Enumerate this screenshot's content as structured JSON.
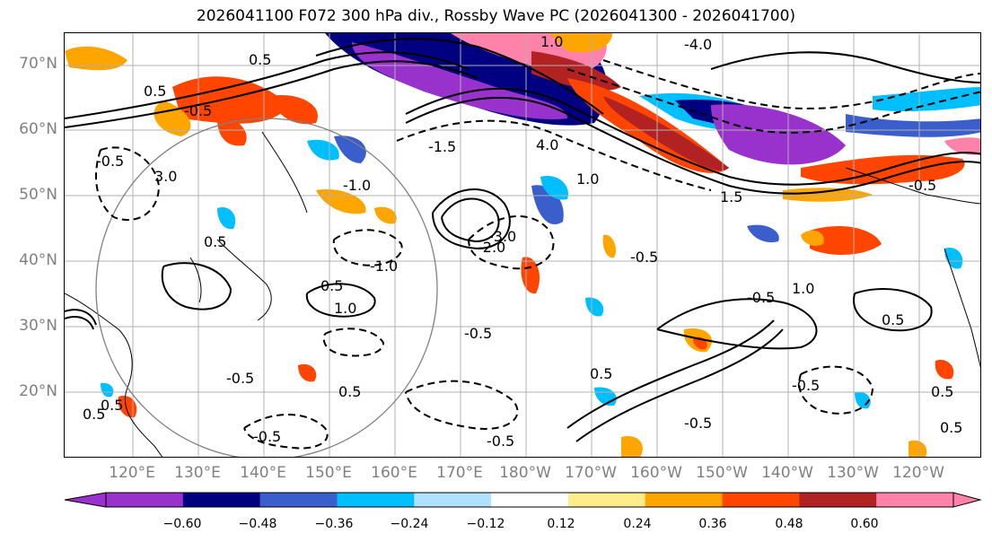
{
  "title": "2026041100 F072 300 hPa div., Rossby Wave PC (2026041300 - 2026041700)",
  "lat_labels": [
    "70°N",
    "60°N",
    "50°N",
    "40°N",
    "30°N",
    "20°N"
  ],
  "lon_labels": [
    "120°E",
    "130°E",
    "140°E",
    "150°E",
    "160°E",
    "170°E",
    "180°W",
    "170°W",
    "160°W",
    "150°W",
    "140°W",
    "130°W",
    "120°W"
  ],
  "colorbar": {
    "colors": [
      "#9932cc",
      "#000080",
      "#3a5fcd",
      "#00bfff",
      "#b0e2ff",
      "#ffffff",
      "#ffec8b",
      "#ffa500",
      "#ff4500",
      "#b22222",
      "#ff82ab"
    ],
    "tick_labels": [
      "−0.60",
      "−0.48",
      "−0.36",
      "−0.24",
      "−0.12",
      "0.12",
      "0.24",
      "0.36",
      "0.48",
      "0.60"
    ]
  },
  "contour_labels": [
    "0.5",
    "-0.5",
    "0.5",
    "-0.5",
    "1.0",
    "-1.0",
    "-1.5",
    "4.0",
    "-4.0",
    "1.0",
    "1.5",
    "-3.0",
    "-2.0",
    "0.5",
    "-0.5",
    "1.0",
    "0.5",
    "-0.5",
    "-1.0",
    "0.5",
    "-0.5",
    "0.5",
    "-0.5",
    "0.5",
    "-0.5",
    "3.0",
    "-0.5",
    "0.5",
    "-0.5",
    "0.5",
    "-0.5",
    "0.5",
    "-0.5",
    "1.0",
    "0.5"
  ],
  "colors": {
    "gridline": "#b0b0b0",
    "axis_text": "#808080",
    "contour": "#000000",
    "circle": "#808080"
  }
}
